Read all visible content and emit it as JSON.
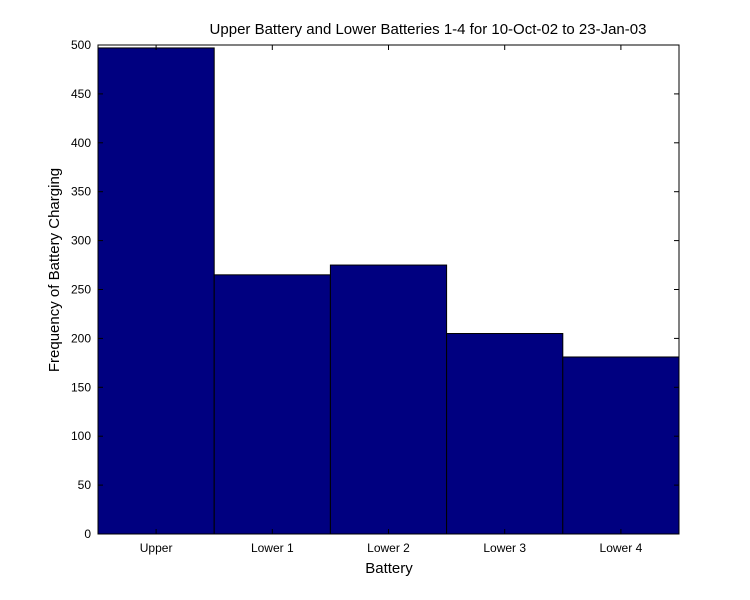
{
  "chart_data": {
    "type": "bar",
    "title": "Upper Battery and Lower Batteries 1-4 for 10-Oct-02 to 23-Jan-03",
    "xlabel": "Battery",
    "ylabel": "Frequency of Battery Charging",
    "categories": [
      "Upper",
      "Lower 1",
      "Lower 2",
      "Lower 3",
      "Lower 4"
    ],
    "values": [
      497,
      265,
      275,
      205,
      181
    ],
    "ylim": [
      0,
      500
    ],
    "yticks": [
      "0",
      "50",
      "100",
      "150",
      "200",
      "250",
      "300",
      "350",
      "400",
      "450",
      "500"
    ],
    "bar_color": "#000080",
    "grid": false
  }
}
